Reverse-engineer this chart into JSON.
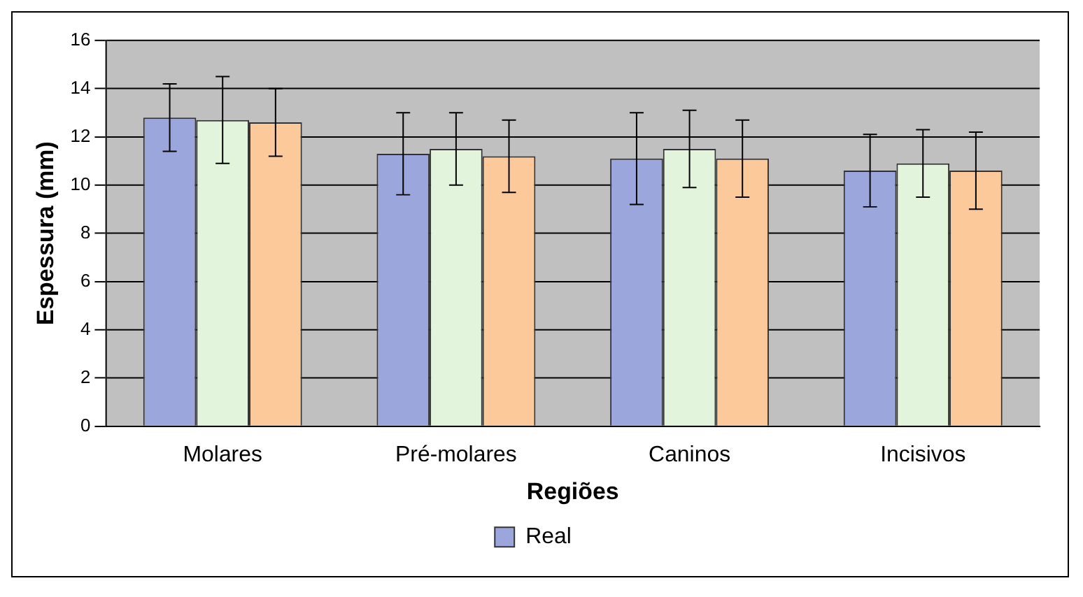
{
  "chart_data": {
    "type": "bar",
    "xlabel": "Regiões",
    "ylabel": "Espessura (mm)",
    "categories": [
      "Molares",
      "Pré-molares",
      "Caninos",
      "Incisivos"
    ],
    "series": [
      {
        "name": "Real",
        "color": "#9aa6dc",
        "values": [
          12.8,
          11.3,
          11.1,
          10.6
        ],
        "errors": [
          1.4,
          1.7,
          1.9,
          1.5
        ]
      },
      {
        "color": "#e2f4dc",
        "values": [
          12.7,
          11.5,
          11.5,
          10.9
        ],
        "errors": [
          1.8,
          1.5,
          1.6,
          1.4
        ]
      },
      {
        "color": "#fbc99a",
        "values": [
          12.6,
          11.2,
          11.1,
          10.6
        ],
        "errors": [
          1.4,
          1.5,
          1.6,
          1.6
        ]
      }
    ],
    "ylim": [
      0,
      16
    ],
    "yticks": [
      0,
      2,
      4,
      6,
      8,
      10,
      12,
      14,
      16
    ],
    "grid": "y",
    "legend": "bottom"
  }
}
